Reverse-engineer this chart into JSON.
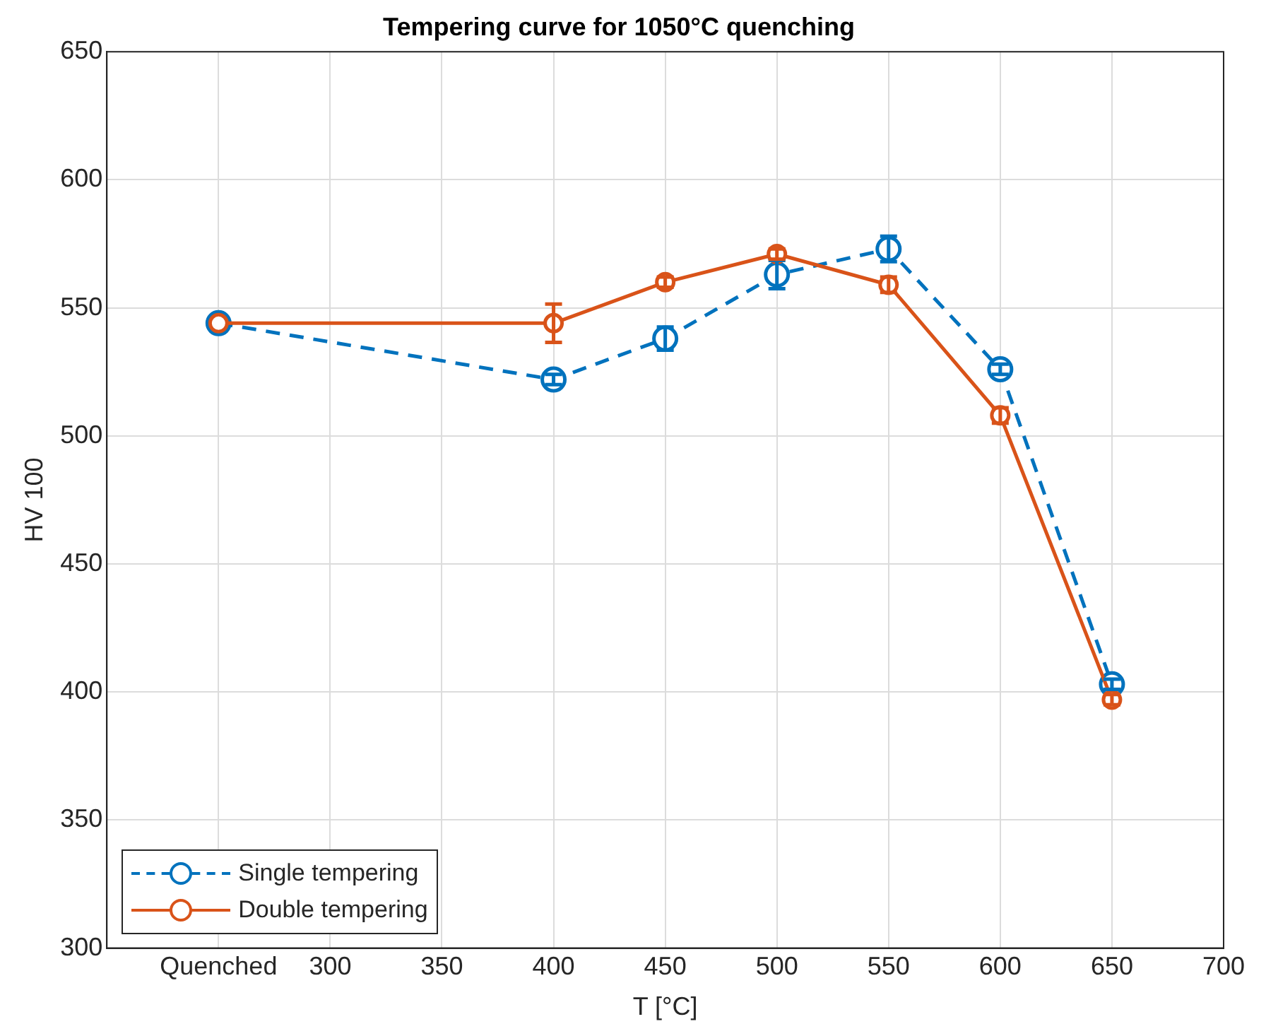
{
  "chart_data": {
    "type": "line",
    "title": "Tempering curve for 1050°C quenching",
    "xlabel": "T [°C]",
    "ylabel": "HV 100",
    "x": [
      250,
      400,
      450,
      500,
      550,
      600,
      650
    ],
    "series": [
      {
        "name": "Single tempering",
        "color": "#0072bd",
        "line_style": "dashed",
        "values": [
          544,
          522,
          538,
          563,
          573,
          526,
          403
        ],
        "errors": [
          null,
          2,
          4.5,
          5.5,
          5,
          2,
          2
        ]
      },
      {
        "name": "Double tempering",
        "color": "#d95319",
        "line_style": "solid",
        "values": [
          544,
          544,
          560,
          571,
          559,
          508,
          397
        ],
        "errors": [
          null,
          7.5,
          2,
          2,
          3,
          3,
          2
        ]
      }
    ],
    "xlim": [
      200,
      700
    ],
    "xticks": [
      {
        "value": 250,
        "label": "Quenched"
      },
      300,
      350,
      400,
      450,
      500,
      550,
      600,
      650,
      700
    ],
    "ylim": [
      300,
      650
    ],
    "yticks": [
      300,
      350,
      400,
      450,
      500,
      550,
      600,
      650
    ],
    "grid": true,
    "legend": "bottom left",
    "marker": "circle"
  }
}
